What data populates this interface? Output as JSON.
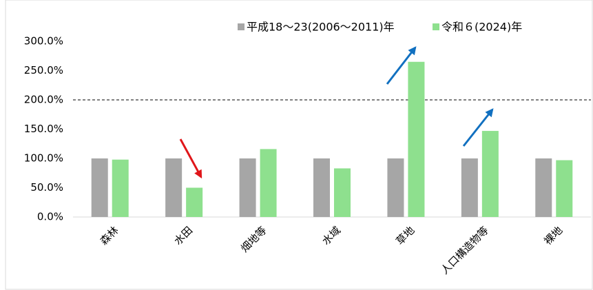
{
  "chart_data": {
    "type": "bar",
    "categories": [
      "森林",
      "水田",
      "畑地等",
      "水域",
      "草地",
      "人口構造物等",
      "裸地"
    ],
    "series": [
      {
        "name": "平成18～23(2006～2011)年",
        "color": "#a6a6a6",
        "values": [
          100,
          100,
          100,
          100,
          100,
          100,
          100
        ]
      },
      {
        "name": "令和６(2024)年",
        "color": "#8ee08e",
        "values": [
          98,
          50,
          116,
          83,
          265,
          147,
          97
        ]
      }
    ],
    "ylim": [
      0,
      300
    ],
    "yticks": [
      {
        "value": 0,
        "label": "0.0%"
      },
      {
        "value": 50,
        "label": "50.0%"
      },
      {
        "value": 100,
        "label": "100.0%"
      },
      {
        "value": 150,
        "label": "150.0%"
      },
      {
        "value": 200,
        "label": "200.0%"
      },
      {
        "value": 250,
        "label": "250.0%"
      },
      {
        "value": 300,
        "label": "300.0%"
      }
    ],
    "reference_lines": [
      200
    ],
    "legend": "top"
  }
}
